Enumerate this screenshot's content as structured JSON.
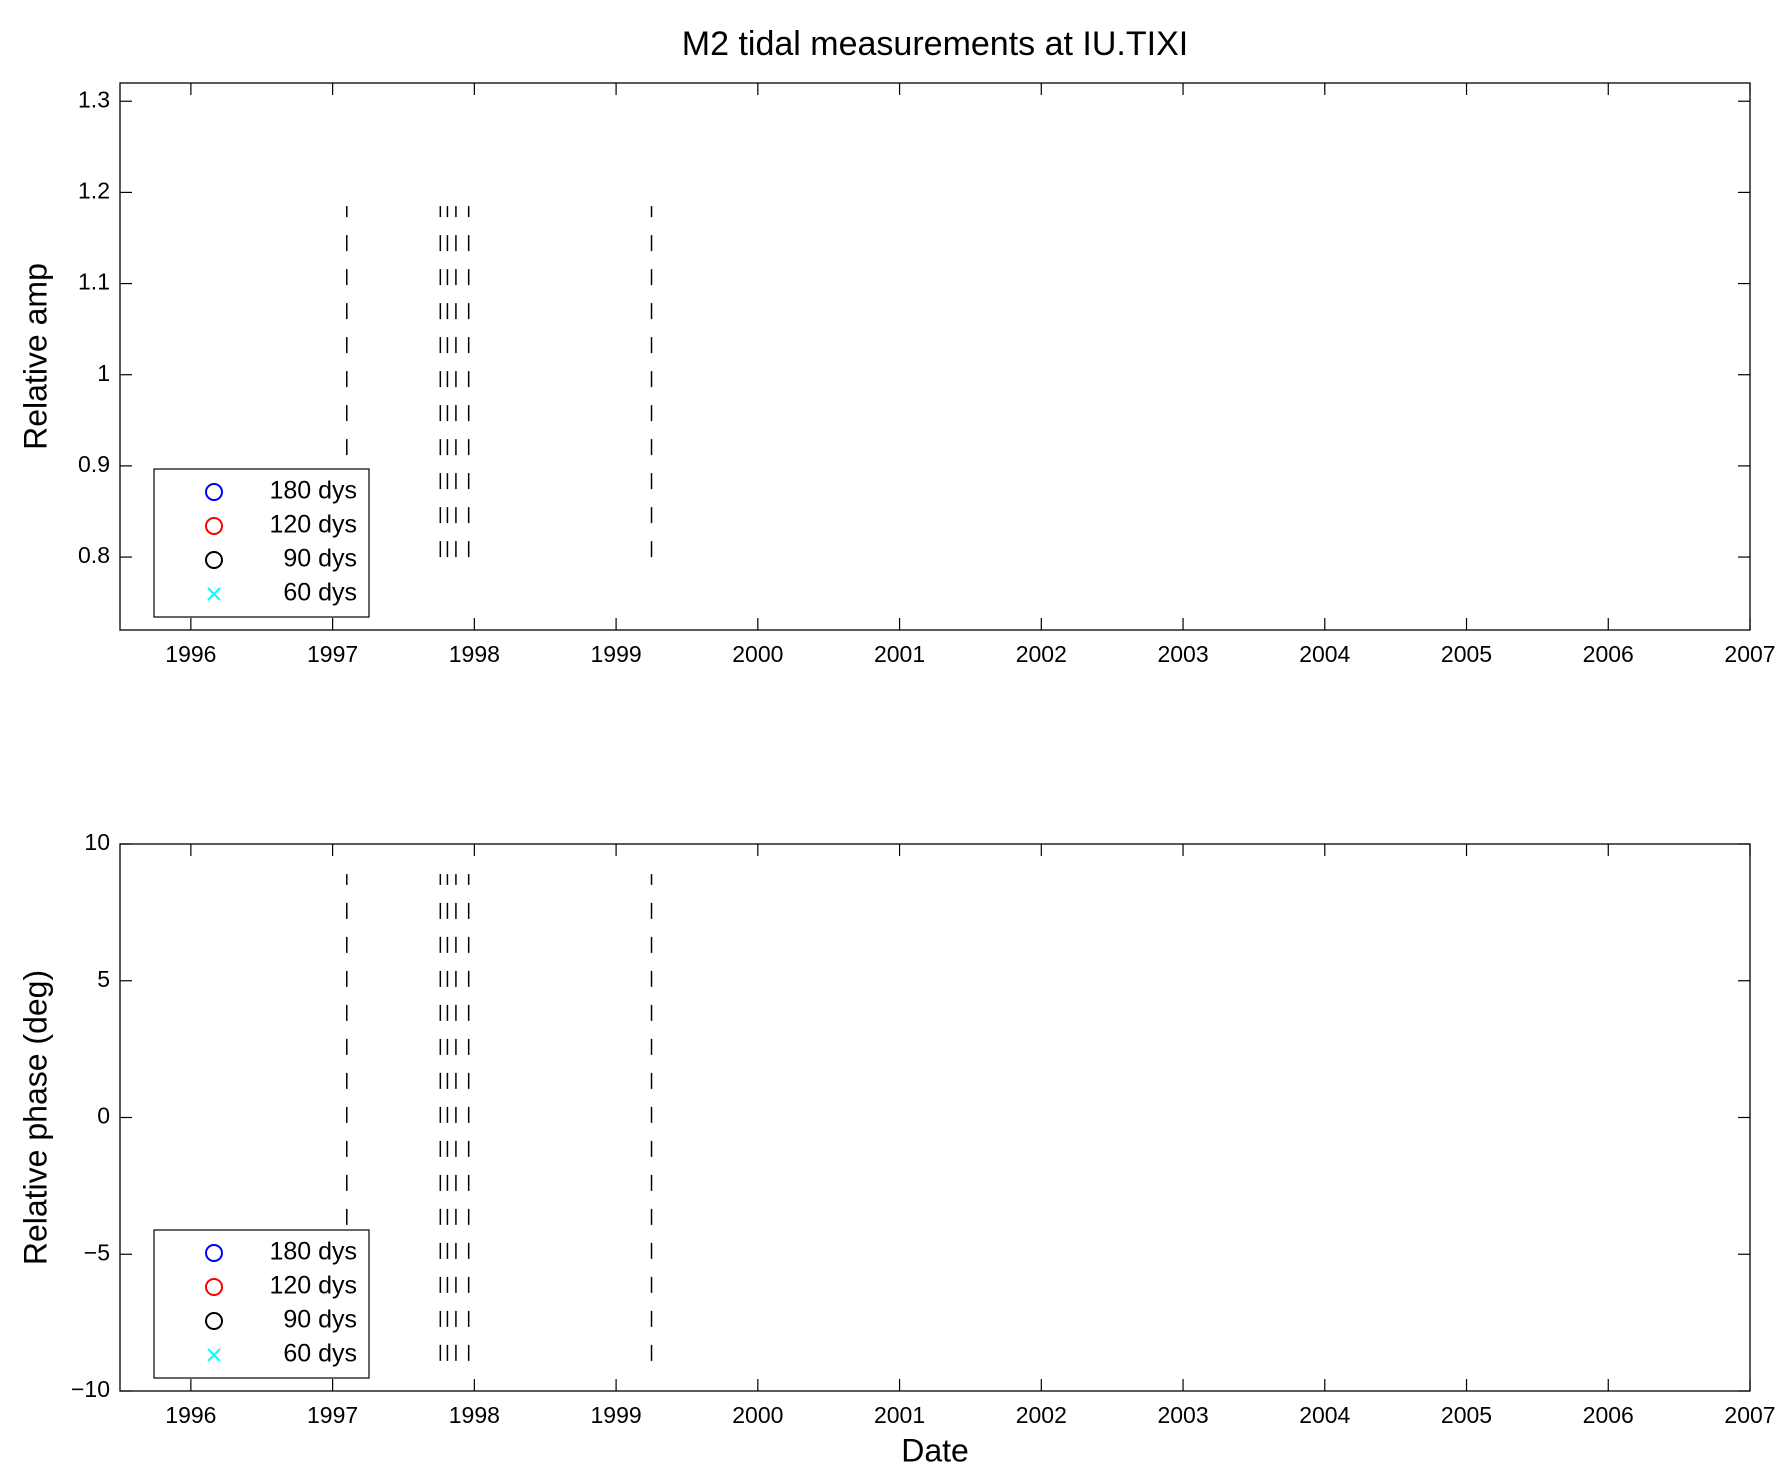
{
  "chart_data": [
    {
      "type": "vline",
      "title": "M2 tidal measurements at IU.TIXI",
      "ylabel": "Relative amp",
      "xlim": [
        1995.5,
        2007
      ],
      "xticks": [
        1996,
        1997,
        1998,
        1999,
        2000,
        2001,
        2002,
        2003,
        2004,
        2005,
        2006,
        2007
      ],
      "ylim": [
        0.72,
        1.32
      ],
      "yticks": [
        0.8,
        0.9,
        1,
        1.1,
        1.2,
        1.3
      ],
      "vlines": [
        1997.1,
        1997.76,
        1997.81,
        1997.87,
        1997.96,
        1999.25
      ],
      "vline_range": [
        0.8,
        1.185
      ],
      "vline_color": "#000000",
      "legend": "lower left",
      "series": [
        {
          "name": "180 dys",
          "color": "#0000ff",
          "marker": "o"
        },
        {
          "name": "120 dys",
          "color": "#ff0000",
          "marker": "o"
        },
        {
          "name": "90 dys",
          "color": "#000000",
          "marker": "o"
        },
        {
          "name": "60 dys",
          "color": "#00ffff",
          "marker": "x"
        }
      ]
    },
    {
      "type": "vline",
      "xlabel": "Date",
      "ylabel": "Relative phase (deg)",
      "xlim": [
        1995.5,
        2007
      ],
      "xticks": [
        1996,
        1997,
        1998,
        1999,
        2000,
        2001,
        2002,
        2003,
        2004,
        2005,
        2006,
        2007
      ],
      "ylim": [
        -10,
        10
      ],
      "yticks": [
        {
          "value": -10,
          "label": "−10"
        },
        {
          "value": -5,
          "label": "−5"
        },
        0,
        5,
        10
      ],
      "vlines": [
        1997.1,
        1997.76,
        1997.81,
        1997.87,
        1997.96,
        1999.25
      ],
      "vline_range": [
        -8.9,
        8.9
      ],
      "vline_color": "#000000",
      "legend": "lower left",
      "series": [
        {
          "name": "180 dys",
          "color": "#0000ff",
          "marker": "o"
        },
        {
          "name": "120 dys",
          "color": "#ff0000",
          "marker": "o"
        },
        {
          "name": "90 dys",
          "color": "#000000",
          "marker": "o"
        },
        {
          "name": "60 dys",
          "color": "#00ffff",
          "marker": "x"
        }
      ]
    }
  ]
}
